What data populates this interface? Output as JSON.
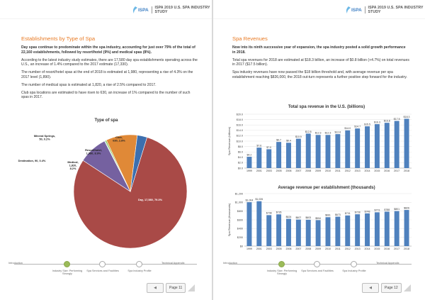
{
  "header": {
    "logo_text": "ISPA",
    "title": "ISPA 2019 U.S. SPA INDUSTRY STUDY"
  },
  "left": {
    "heading": "Establishments by Type of Spa",
    "paragraphs": [
      "Day spas continue to predominate within the spa industry, accounting for just over 79% of the total of 22,160 establishments, followed by resort/hotel (9%) and medical spas (8%).",
      "According to the latest industry study estimates, there are 17,580 day spa establishments operating across the U.S., an increase of 1.4% compared to the 2017 estimate (17,330).",
      "The number of resort/hotel spas at the end of 2018 is estimated at 1,980, representing a rise of 4.3% on the 2017 level (1,890).",
      "The number of medical spas is estimated at 1,820, a rise of 2.5% compared to 2017.",
      "Club spa locations are estimated to have risen to 630, an increase of 1% compared to the number of such spas in 2017."
    ]
  },
  "right": {
    "heading": "Spa Revenues",
    "paragraphs": [
      "Now into its ninth successive year of expansion, the spa industry posted a solid growth performance in 2018.",
      "Total spa revenues for 2018 are estimated at $18.3 billion, an increase of $0.8 billion (+4.7%) on total revenues in 2017 ($17.5 billion).",
      "Spa industry revenues have now passed the $18 billion threshold and, with average revenue per spa establishment reaching $826,000, the 2018 out-turn represents a further positive step forward for the industry."
    ]
  },
  "colors": {
    "accent": "#e87b25",
    "brand": "#3d7fc4",
    "bar": "#4f81bd",
    "nav_active": "#9bbb59"
  },
  "chart_data": [
    {
      "type": "pie",
      "title": "Type of spa",
      "slices": [
        {
          "label": "Day, 17,580, 79.3%",
          "value": 79.3,
          "color": "#a94a47"
        },
        {
          "label": "Medical, 1,820, 8.2%",
          "value": 8.2,
          "color": "#7561a0"
        },
        {
          "label": "Mineral Springs, 50, 0.2%",
          "value": 0.2,
          "color": "#4aacc5"
        },
        {
          "label": "Destination, 90, 0.4%",
          "value": 0.4,
          "color": "#93c34f"
        },
        {
          "label": "Resort/hotel, 1,980, 8.9%",
          "value": 8.9,
          "color": "#e08937"
        },
        {
          "label": "Club, 630, 2.8%",
          "value": 2.8,
          "color": "#3d6fae"
        }
      ]
    },
    {
      "type": "bar",
      "title": "Total spa revenue in the U.S. (billions)",
      "ylabel": "Spa Revenue (billions)",
      "ylim": [
        0,
        20
      ],
      "yticks": [
        "$0.0",
        "$2.0",
        "$4.0",
        "$6.0",
        "$8.0",
        "$10.0",
        "$12.0",
        "$14.0",
        "$16.0",
        "$18.0",
        "$20.0"
      ],
      "categories": [
        "1999",
        "2001",
        "2003",
        "2005",
        "2006",
        "2007",
        "2008",
        "2009",
        "2010",
        "2011",
        "2012",
        "2013",
        "2014",
        "2015",
        "2016",
        "2017",
        "2018"
      ],
      "values": [
        4.2,
        7.6,
        7.0,
        9.7,
        9.4,
        10.9,
        12.8,
        12.3,
        12.3,
        12.6,
        14.0,
        14.7,
        15.5,
        16.3,
        16.8,
        17.5,
        18.3
      ],
      "labels": [
        "$4.2",
        "$7.6",
        "$7.0",
        "$9.7",
        "$9.4",
        "$10.9",
        "$12.8",
        "$12.3",
        "$12.3",
        "$12.6",
        "$14.0",
        "$14.7",
        "$15.5",
        "$16.3",
        "$16.8",
        "$17.5",
        "$18.3"
      ]
    },
    {
      "type": "bar",
      "title": "Average revenue per establishment (thousands)",
      "ylabel": "Spa Revenue (thousands)",
      "ylim": [
        0,
        1200
      ],
      "yticks": [
        "$0",
        "$200",
        "$400",
        "$600",
        "$800",
        "$1,000",
        "$1,200"
      ],
      "categories": [
        "1999",
        "2001",
        "2003",
        "2005",
        "2006",
        "2007",
        "2008",
        "2009",
        "2010",
        "2011",
        "2012",
        "2013",
        "2014",
        "2015",
        "2016",
        "2017",
        "2018"
      ],
      "values": [
        1004,
        1026,
        708,
        726,
        624,
        607,
        603,
        594,
        661,
        673,
        701,
        728,
        748,
        773,
        788,
        801,
        826
      ],
      "labels": [
        "$1,004",
        "$1,026",
        "$708",
        "$726",
        "$624",
        "$607",
        "$603",
        "$594",
        "$661",
        "$673",
        "$701",
        "$728",
        "$748",
        "$773",
        "$788",
        "$801",
        "$826"
      ]
    }
  ],
  "nav": {
    "left_edge": "Introduction",
    "right_edge": "Technical Appendix",
    "stops": [
      {
        "label": "Industry Size: Performing Strongly"
      },
      {
        "label": "Spa Services and Facilities"
      },
      {
        "label": "Spa Industry Profile"
      }
    ]
  },
  "footer": {
    "left_page": "Page 11",
    "right_page": "Page 12"
  }
}
